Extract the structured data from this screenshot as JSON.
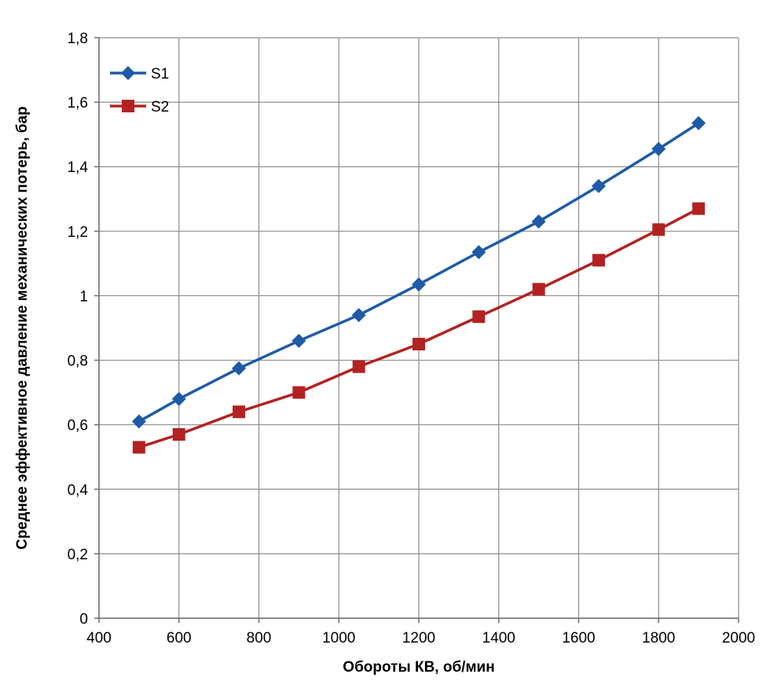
{
  "chart_data": {
    "type": "line",
    "title": "",
    "xlabel": "Обороты КВ, об/мин",
    "ylabel": "Среднее эффективное давление механических потерь, бар",
    "xlim": [
      400,
      2000
    ],
    "ylim": [
      0,
      1.8
    ],
    "x_ticks": [
      400,
      600,
      800,
      1000,
      1200,
      1400,
      1600,
      1800,
      2000
    ],
    "x_tick_labels": [
      "400",
      "600",
      "800",
      "1000",
      "1200",
      "1400",
      "1600",
      "1800",
      "2000"
    ],
    "y_ticks": [
      0,
      0.2,
      0.4,
      0.6,
      0.8,
      1.0,
      1.2,
      1.4,
      1.6,
      1.8
    ],
    "y_tick_labels": [
      "0",
      "0,2",
      "0,4",
      "0,6",
      "0,8",
      "1",
      "1,2",
      "1,4",
      "1,6",
      "1,8"
    ],
    "grid": true,
    "legend_position": "top-left",
    "x": [
      500,
      600,
      750,
      900,
      1050,
      1200,
      1350,
      1500,
      1650,
      1800,
      1900
    ],
    "series": [
      {
        "name": "S1",
        "color": "#1f5aa6",
        "marker": "diamond",
        "values": [
          0.61,
          0.68,
          0.775,
          0.86,
          0.94,
          1.035,
          1.135,
          1.23,
          1.34,
          1.455,
          1.535
        ]
      },
      {
        "name": "S2",
        "color": "#b22222",
        "marker": "square",
        "values": [
          0.53,
          0.57,
          0.64,
          0.7,
          0.78,
          0.85,
          0.935,
          1.02,
          1.11,
          1.205,
          1.27
        ]
      }
    ]
  }
}
